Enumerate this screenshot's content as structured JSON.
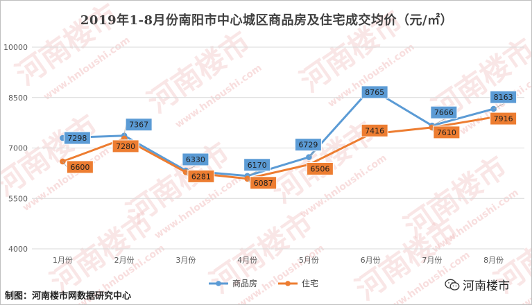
{
  "title": "2019年1-8月份南阳市中心城区商品房及住宅成交均价（元/㎡）",
  "footer": {
    "source": "制图：河南楼市网数据研究中心",
    "brand": "河南楼市"
  },
  "watermark": {
    "main": "河南楼市",
    "url": "www.hnloushi.com"
  },
  "colors": {
    "series1": "#5B9BD5",
    "series2": "#ED7D31",
    "grid": "#d9d9d9",
    "axis_text": "#595959"
  },
  "chart_data": {
    "type": "line",
    "categories": [
      "1月份",
      "2月份",
      "3月份",
      "4月份",
      "5月份",
      "6月份",
      "7月份",
      "8月份"
    ],
    "series": [
      {
        "name": "商品房",
        "values": [
          7298,
          7367,
          6330,
          6170,
          6729,
          8765,
          7666,
          8163
        ]
      },
      {
        "name": "住宅",
        "values": [
          6600,
          7280,
          6281,
          6087,
          6506,
          7416,
          7610,
          7916
        ]
      }
    ],
    "ylim": [
      4000,
      10000
    ],
    "yticks": [
      4000,
      5500,
      7000,
      8500,
      10000
    ],
    "legend_position": "bottom",
    "grid": true,
    "data_labels": true
  }
}
